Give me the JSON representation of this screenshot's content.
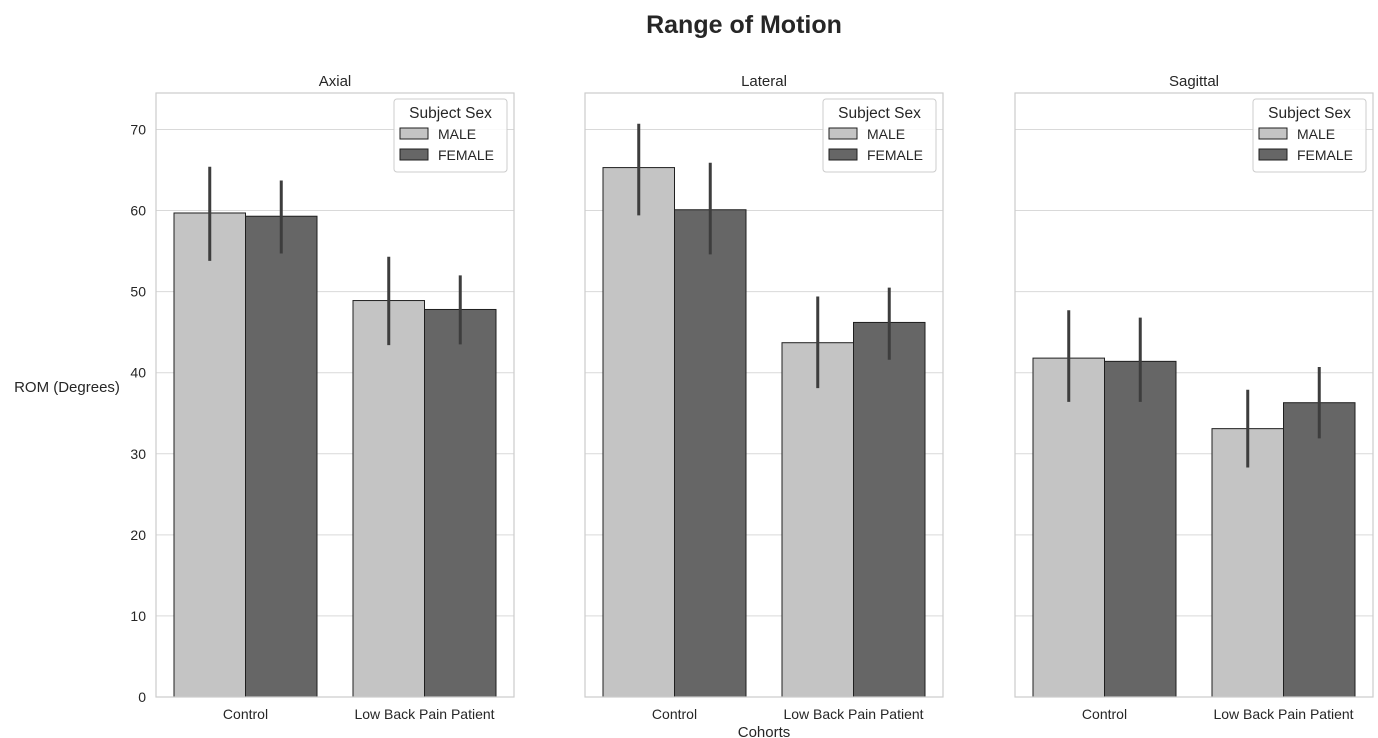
{
  "chart_data": {
    "type": "bar",
    "title": "Range of Motion",
    "xlabel": "Cohorts",
    "ylabel": "ROM (Degrees)",
    "ylim": [
      0,
      74.5
    ],
    "yticks": [
      0,
      10,
      20,
      30,
      40,
      50,
      60,
      70
    ],
    "grid": true,
    "legend": {
      "title": "Subject Sex",
      "placement": "top-right",
      "entries": [
        "MALE",
        "FEMALE"
      ]
    },
    "colors": {
      "MALE": "#c4c4c4",
      "FEMALE": "#666666",
      "error_bar": "#3d3d3d"
    },
    "categories": [
      "Control",
      "Low Back Pain Patient"
    ],
    "panels": [
      {
        "title": "Axial",
        "series": [
          {
            "name": "MALE",
            "values": [
              59.7,
              48.9
            ],
            "ci_low": [
              53.8,
              43.4
            ],
            "ci_high": [
              65.4,
              54.3
            ]
          },
          {
            "name": "FEMALE",
            "values": [
              59.3,
              47.8
            ],
            "ci_low": [
              54.7,
              43.5
            ],
            "ci_high": [
              63.7,
              52.0
            ]
          }
        ]
      },
      {
        "title": "Lateral",
        "series": [
          {
            "name": "MALE",
            "values": [
              65.3,
              43.7
            ],
            "ci_low": [
              59.4,
              38.1
            ],
            "ci_high": [
              70.7,
              49.4
            ]
          },
          {
            "name": "FEMALE",
            "values": [
              60.1,
              46.2
            ],
            "ci_low": [
              54.6,
              41.6
            ],
            "ci_high": [
              65.9,
              50.5
            ]
          }
        ]
      },
      {
        "title": "Sagittal",
        "series": [
          {
            "name": "MALE",
            "values": [
              41.8,
              33.1
            ],
            "ci_low": [
              36.4,
              28.3
            ],
            "ci_high": [
              47.7,
              37.9
            ]
          },
          {
            "name": "FEMALE",
            "values": [
              41.4,
              36.3
            ],
            "ci_low": [
              36.4,
              31.9
            ],
            "ci_high": [
              46.8,
              40.7
            ]
          }
        ]
      }
    ]
  }
}
